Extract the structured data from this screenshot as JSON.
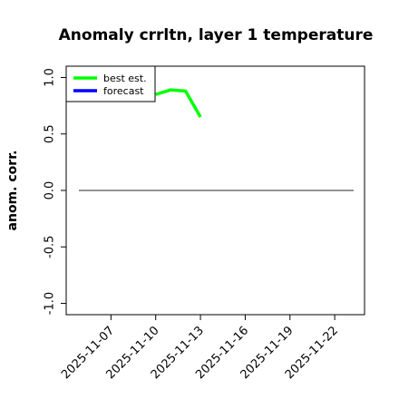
{
  "chart_data": {
    "type": "line",
    "title": "Anomaly crrltn, layer 1 temperature",
    "ylabel": "anom. corr.",
    "xlim": [
      "2025-11-04",
      "2025-11-24"
    ],
    "xticks": [
      "2025-11-07",
      "2025-11-10",
      "2025-11-13",
      "2025-11-16",
      "2025-11-19",
      "2025-11-22"
    ],
    "highlight_xtick_index": 2,
    "highlight_color": "#228b22",
    "ylim": [
      -1.1,
      1.1
    ],
    "yticks": [
      {
        "value": -1,
        "label": "-1.0"
      },
      {
        "value": -0.5,
        "label": "-0.5"
      },
      {
        "value": 0,
        "label": "0.0"
      },
      {
        "value": 0.5,
        "label": "0.5"
      },
      {
        "value": 1,
        "label": "1.0"
      }
    ],
    "hline": 0,
    "legend": "top-left",
    "series": [
      {
        "name": "best est.",
        "color": "#00ff00",
        "x": [
          "2025-11-10",
          "2025-11-11",
          "2025-11-12",
          "2025-11-13"
        ],
        "values": [
          0.85,
          0.89,
          0.88,
          0.65
        ]
      },
      {
        "name": "forecast",
        "color": "#0000ff",
        "x": [],
        "values": []
      }
    ]
  }
}
